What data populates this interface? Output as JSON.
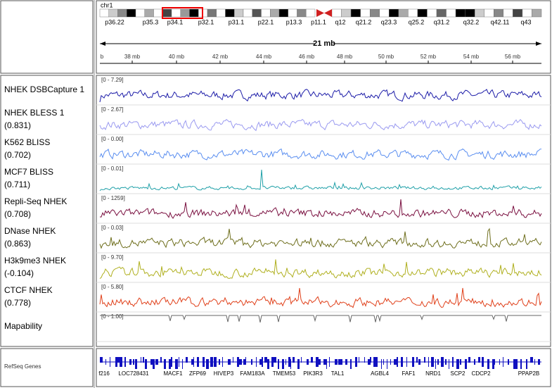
{
  "header": {
    "chromosome": "chr1",
    "bands": [
      "p36.22",
      "p35.3",
      "p34.1",
      "p32.1",
      "p31.1",
      "p22.1",
      "p13.3",
      "p11.1",
      "q12",
      "q21.2",
      "q23.3",
      "q25.2",
      "q31.2",
      "q32.2",
      "q42.11",
      "q43"
    ],
    "span": "21 mb",
    "ruler": [
      "b",
      "38 mb",
      "40 mb",
      "42 mb",
      "44 mb",
      "46 mb",
      "48 mb",
      "50 mb",
      "52 mb",
      "54 mb",
      "56 mb"
    ]
  },
  "tracks": [
    {
      "name": "NHEK DSBCapture 1",
      "range": "[0 - 7.29]",
      "color": "#1c1ca8"
    },
    {
      "name": "NHEK BLESS 1",
      "score": "(0.831)",
      "range": "[0 - 2.67]",
      "color": "#9a9af0"
    },
    {
      "name": "K562 BLISS",
      "score": "(0.702)",
      "range": "[0 - 0.00]",
      "color": "#5a8ef0"
    },
    {
      "name": "MCF7 BLISS",
      "score": "(0.711)",
      "range": "[0 - 0.01]",
      "color": "#1fa0a8"
    },
    {
      "name": "Repli-Seq NHEK",
      "score": "(0.708)",
      "range": "[0 - 1259]",
      "color": "#7a1040"
    },
    {
      "name": "DNase NHEK",
      "score": "(0.863)",
      "range": "[0 - 0.03]",
      "color": "#6e6e1c"
    },
    {
      "name": "H3k9me3 NHEK",
      "score": "(-0.104)",
      "range": "[0 - 9.70]",
      "color": "#b0b020"
    },
    {
      "name": "CTCF NHEK",
      "score": "(0.778)",
      "range": "[0 - 5.80]",
      "color": "#e0401a"
    },
    {
      "name": "Mapability",
      "range": "[0 - 1.00]",
      "color": "#666666"
    }
  ],
  "refseq": {
    "title": "RefSeq Genes",
    "genes": [
      "f216",
      "LOC728431",
      "MACF1",
      "ZFP69",
      "HIVEP3",
      "FAM183A",
      "TMEM53",
      "PIK3R3",
      "TAL1",
      "AGBL4",
      "FAF1",
      "NRD1",
      "SCP2",
      "CDCP2",
      "PPAP2B"
    ]
  }
}
